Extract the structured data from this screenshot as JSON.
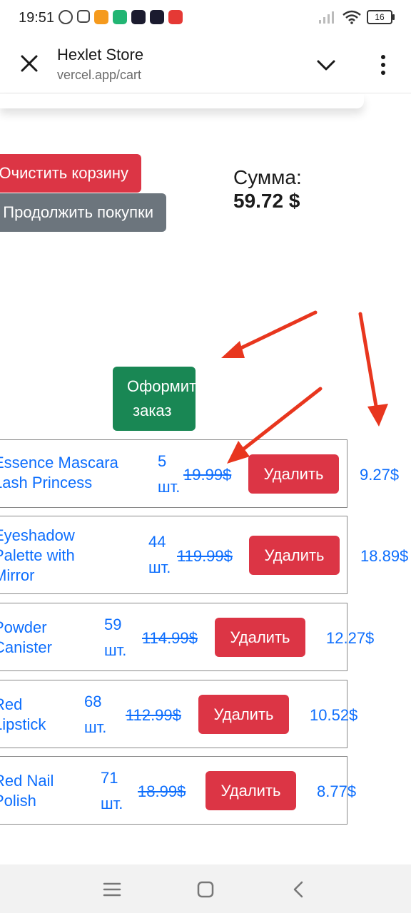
{
  "status": {
    "time": "19:51",
    "battery": "16"
  },
  "browser": {
    "title": "Hexlet Store",
    "url": "vercel.app/cart"
  },
  "cart": {
    "clear_label": "Очистить корзину",
    "continue_label": "Продолжить покупки",
    "sum_label": "Сумма:",
    "sum_value": "59.72 $",
    "order_line1": "Оформить",
    "order_line2": "заказ",
    "delete_label": "Удалить",
    "qty_unit": "шт.",
    "items": [
      {
        "name_line1": "Essence Mascara",
        "name_line2": "Lash Princess",
        "name_line3": "",
        "qty": "5",
        "price": "19.99$",
        "total": "9.27$"
      },
      {
        "name_line1": "Eyeshadow",
        "name_line2": "Palette with",
        "name_line3": "Mirror",
        "qty": "44",
        "price": "119.99$",
        "total": "18.89$"
      },
      {
        "name_line1": "Powder",
        "name_line2": "Canister",
        "name_line3": "",
        "qty": "59",
        "price": "114.99$",
        "total": "12.27$"
      },
      {
        "name_line1": "Red",
        "name_line2": "Lipstick",
        "name_line3": "",
        "qty": "68",
        "price": "112.99$",
        "total": "10.52$"
      },
      {
        "name_line1": "Red Nail",
        "name_line2": "Polish",
        "name_line3": "",
        "qty": "71",
        "price": "18.99$",
        "total": "8.77$"
      }
    ]
  },
  "colors": {
    "danger": "#dc3545",
    "secondary": "#6c757d",
    "success": "#198754",
    "link": "#0d6efd",
    "arrow": "#e8361e"
  }
}
